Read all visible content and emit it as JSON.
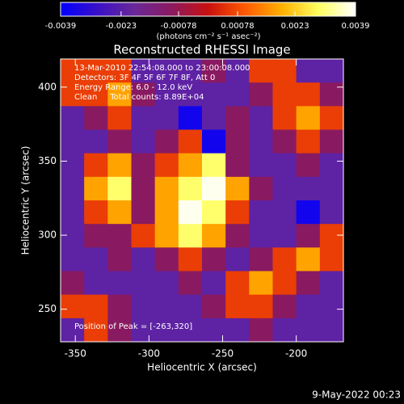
{
  "chart_data": {
    "type": "heatmap",
    "title": "Reconstructed RHESSI Image",
    "xlabel": "Heliocentric X (arcsec)",
    "ylabel": "Heliocentric Y (arcsec)",
    "xlim": [
      -360,
      -168
    ],
    "ylim": [
      228,
      419
    ],
    "xticks": [
      -350,
      -300,
      -250,
      -200
    ],
    "yticks": [
      250,
      300,
      350,
      400
    ],
    "clim": [
      -0.0039,
      0.0039
    ],
    "cticks": [
      -0.0039,
      -0.0023,
      -0.00078,
      0.00078,
      0.0023,
      0.0039
    ],
    "colorbar_label": "(photons cm⁻² s⁻¹ asec⁻²)",
    "colorscale": [
      "#0000ff",
      "#3a10c8",
      "#6a2898",
      "#8a1a60",
      "#c81010",
      "#ff5a00",
      "#ffb000",
      "#ffff60",
      "#ffffff"
    ],
    "annotations": [
      "13-Mar-2010 22:54:08.000 to 23:00:08.000",
      "Detectors: 3F 4F 5F 6F 7F 8F, Att 0",
      "Energy Range: 6.0 - 12.0 keV",
      "Clean     Total counts: 8.89E+04"
    ],
    "peak_label": "Position of Peak = [-263,320]",
    "footer": "9-May-2022 00:23",
    "z": [
      [
        0.0006,
        0.0006,
        0.0006,
        -0.0022,
        -0.0022,
        -0.0022,
        -0.001,
        -0.0022,
        0.0006,
        0.0006,
        -0.0022,
        -0.0022
      ],
      [
        0.0006,
        0.0006,
        0.0018,
        -0.001,
        -0.0022,
        -0.0022,
        -0.0022,
        -0.0022,
        -0.001,
        0.0006,
        0.0006,
        -0.001
      ],
      [
        -0.0022,
        -0.001,
        0.0006,
        -0.0022,
        -0.0022,
        -0.0036,
        -0.0022,
        -0.001,
        -0.0022,
        0.0006,
        0.0018,
        0.0006
      ],
      [
        -0.0022,
        -0.0022,
        -0.001,
        -0.0022,
        -0.001,
        0.0006,
        -0.0036,
        -0.001,
        -0.0022,
        -0.001,
        0.0006,
        -0.001
      ],
      [
        -0.0022,
        0.0006,
        0.0018,
        -0.001,
        0.0006,
        0.0018,
        0.003,
        -0.001,
        -0.0022,
        -0.0022,
        -0.001,
        -0.0022
      ],
      [
        -0.0022,
        0.0018,
        0.003,
        -0.001,
        0.0018,
        0.003,
        0.0038,
        0.0018,
        -0.001,
        -0.0022,
        -0.0022,
        -0.0022
      ],
      [
        -0.0022,
        0.0006,
        0.0018,
        -0.001,
        0.0018,
        0.0038,
        0.003,
        0.0006,
        -0.0022,
        -0.0022,
        -0.0036,
        -0.0022
      ],
      [
        -0.0022,
        -0.001,
        -0.001,
        0.0006,
        0.0018,
        0.003,
        0.0018,
        -0.001,
        -0.0022,
        -0.0022,
        -0.001,
        0.0006
      ],
      [
        -0.0022,
        -0.0022,
        -0.001,
        -0.0022,
        -0.001,
        0.0006,
        -0.001,
        -0.0022,
        -0.001,
        0.0006,
        0.0018,
        0.0006
      ],
      [
        -0.001,
        -0.0022,
        -0.0022,
        -0.0022,
        -0.0022,
        -0.001,
        -0.0022,
        0.0006,
        0.0018,
        0.0006,
        -0.001,
        -0.0022
      ],
      [
        0.0006,
        0.0006,
        -0.001,
        -0.0022,
        -0.0022,
        -0.0022,
        -0.001,
        0.0006,
        0.0006,
        -0.001,
        -0.0022,
        -0.0022
      ],
      [
        -0.0022,
        0.0006,
        -0.001,
        -0.0022,
        -0.0022,
        -0.0022,
        -0.0022,
        -0.0022,
        -0.001,
        -0.0022,
        -0.0022,
        -0.0022
      ]
    ]
  }
}
